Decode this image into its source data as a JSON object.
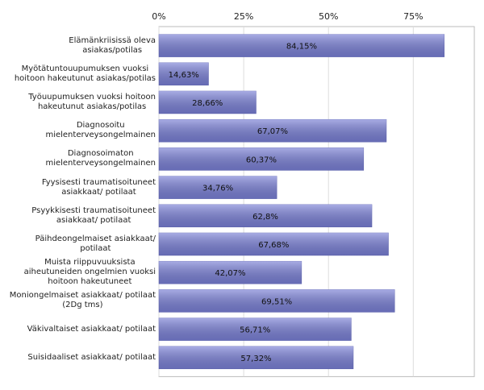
{
  "chart_data": {
    "type": "bar",
    "orientation": "horizontal",
    "categories": [
      "Elämänkriisissä oleva\nasiakas/potilas",
      "Myötätuntouupumuksen vuoksi\nhoitoon hakeutunut asiakas/potilas",
      "Työuupumuksen vuoksi hoitoon\nhakeutunut asiakas/potilas",
      "Diagnosoitu\nmielenterveysongelmainen",
      "Diagnosoimaton\nmielenterveysongelmainen",
      "Fyysisesti traumatisoituneet\nasiakkaat/ potilaat",
      "Psyykkisesti traumatisoituneet\nasiakkaat/ potilaat",
      "Päihdeongelmaiset asiakkaat/\npotilaat",
      "Muista riippuvuuksista\naiheutuneiden ongelmien vuoksi\nhoitoon hakeutuneet",
      "Moniongelmaiset asiakkaat/ potilaat\n(2Dg tms)",
      "Väkivaltaiset asiakkaat/ potilaat",
      "Suisidaaliset asiakkaat/ potilaat"
    ],
    "values": [
      84.15,
      14.63,
      28.66,
      67.07,
      60.37,
      34.76,
      62.8,
      67.68,
      42.07,
      69.51,
      56.71,
      57.32
    ],
    "value_labels": [
      "84,15%",
      "14,63%",
      "28,66%",
      "67,07%",
      "60,37%",
      "34,76%",
      "62,8%",
      "67,68%",
      "42,07%",
      "69,51%",
      "56,71%",
      "57,32%"
    ],
    "color": "#7a80d6",
    "xlim": [
      0,
      93
    ],
    "xticks": [
      {
        "value": 0,
        "label": "0%"
      },
      {
        "value": 25,
        "label": "25%"
      },
      {
        "value": 50,
        "label": "50%"
      },
      {
        "value": 75,
        "label": "75%"
      }
    ],
    "grid": true
  }
}
